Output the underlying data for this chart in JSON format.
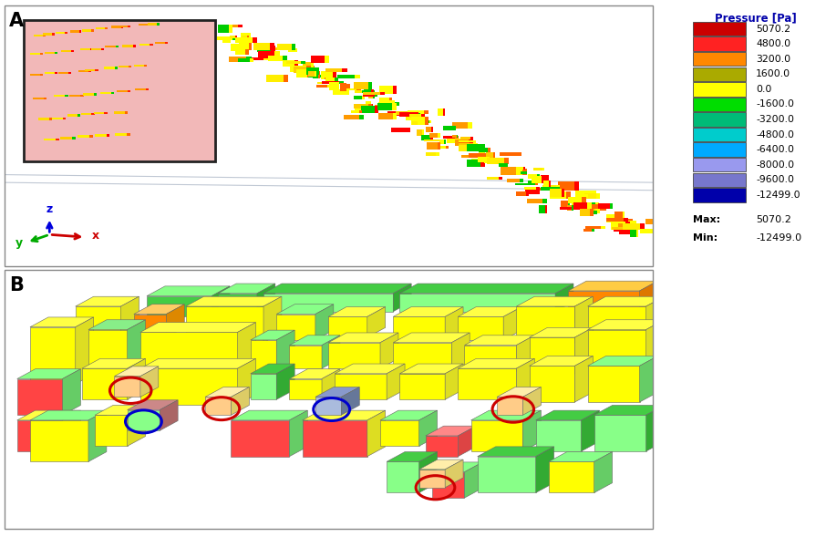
{
  "title_a": "A",
  "title_b": "B",
  "bg_color_inset": "#f2b8b8",
  "panel_bg": "#d8dfe8",
  "outer_bg": "#ffffff",
  "legend_title": "Pressure [Pa]",
  "legend_labels": [
    "5070.2",
    "4800.0",
    "3200.0",
    "1600.0",
    "0.0",
    "-1600.0",
    "-3200.0",
    "-4800.0",
    "-6400.0",
    "-8000.0",
    "-9600.0",
    "-12499.0"
  ],
  "legend_colors": [
    "#cc0000",
    "#ff2222",
    "#ff8800",
    "#aaaa00",
    "#ffff00",
    "#00dd00",
    "#00bb77",
    "#00cccc",
    "#00aaff",
    "#9999ee",
    "#7777cc",
    "#0000aa"
  ],
  "max_label": "Max:",
  "max_val": "5070.2",
  "min_label": "Min:",
  "min_val": "-12499.0",
  "axis_z_color": "#0000dd",
  "axis_x_color": "#cc0000",
  "axis_y_color": "#00aa00",
  "panel_border_color": "#aaaaaa",
  "divider_color": "#888888"
}
